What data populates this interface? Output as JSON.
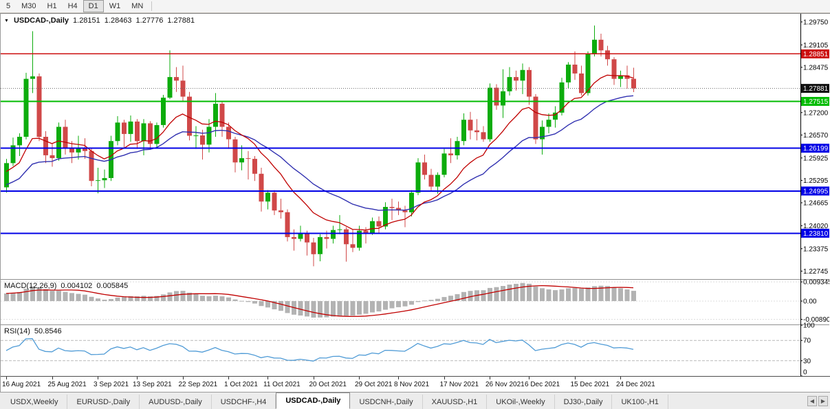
{
  "colors": {
    "candle_up": "#0cac0c",
    "candle_down": "#d04848",
    "ma_fast": "#c00000",
    "ma_slow": "#3030b0",
    "macd_hist": "#b3b3b3",
    "macd_signal": "#c00000",
    "rsi_line": "#4f9bd6",
    "axis_text": "#000000"
  },
  "toolbar": {
    "timeframes": [
      "5",
      "M30",
      "H1",
      "H4",
      "D1",
      "W1",
      "MN"
    ],
    "active": "D1"
  },
  "chart_header": {
    "dropdown_icon": "▼",
    "symbol_label": "USDCAD-,Daily",
    "open": "1.28151",
    "high": "1.28463",
    "low": "1.27776",
    "close": "1.27881"
  },
  "indicators": {
    "macd": {
      "label": "MACD(12,26,9)",
      "value_main": "0.004102",
      "value_signal": "0.005845"
    },
    "rsi": {
      "label": "RSI(14)",
      "value": "50.8546"
    }
  },
  "chart_data": {
    "type": "candlestick",
    "title": "USDCAD-,Daily",
    "ylim": [
      1.2252,
      1.2998
    ],
    "y_ticks": [
      "1.29750",
      "1.29105",
      "1.28475",
      "1.27200",
      "1.26570",
      "1.25925",
      "1.25295",
      "1.24665",
      "1.24020",
      "1.23375",
      "1.22745"
    ],
    "hlines": [
      {
        "price": 1.28851,
        "label": "1.28851",
        "color": "#cc0f0f",
        "width": 1.6
      },
      {
        "price": 1.27515,
        "label": "1.27515",
        "color": "#00bb00",
        "width": 1.6
      },
      {
        "price": 1.26199,
        "label": "1.26199",
        "color": "#0000e6",
        "width": 2
      },
      {
        "price": 1.24995,
        "label": "1.24995",
        "color": "#0000e6",
        "width": 2
      },
      {
        "price": 1.2381,
        "label": "1.23810",
        "color": "#0000e6",
        "width": 2
      }
    ],
    "current_price": {
      "label": "1.27881",
      "value": 1.27881,
      "badge_color": "#101010"
    },
    "overlays": {
      "ma_fast": {
        "type": "ema",
        "period": 12,
        "seed": 1.255
      },
      "ma_slow": {
        "type": "ema",
        "period": 26,
        "seed": 1.2512
      }
    },
    "sub_panes": {
      "macd": {
        "ylim": [
          -0.0114,
          0.0104
        ],
        "ticks": [
          {
            "label": "0.009345",
            "v": 0.009345
          },
          {
            "label": "0.00",
            "v": 0
          },
          {
            "label": "-0.008905",
            "v": -0.008905
          }
        ]
      },
      "rsi": {
        "ylim": [
          0,
          100
        ],
        "levels": [
          70,
          30
        ],
        "ticks": [
          {
            "label": "100",
            "v": 100
          },
          {
            "label": "70",
            "v": 70
          },
          {
            "label": "30",
            "v": 30
          },
          {
            "label": "0",
            "v": 0
          }
        ]
      }
    },
    "x_tick_labels": [
      {
        "label": "16 Aug 2021",
        "i": 0
      },
      {
        "label": "25 Aug 2021",
        "i": 7
      },
      {
        "label": "3 Sep 2021",
        "i": 14
      },
      {
        "label": "13 Sep 2021",
        "i": 20
      },
      {
        "label": "22 Sep 2021",
        "i": 27
      },
      {
        "label": "1 Oct 2021",
        "i": 34
      },
      {
        "label": "11 Oct 2021",
        "i": 40
      },
      {
        "label": "20 Oct 2021",
        "i": 47
      },
      {
        "label": "29 Oct 2021",
        "i": 54
      },
      {
        "label": "8 Nov 2021",
        "i": 60
      },
      {
        "label": "17 Nov 2021",
        "i": 67
      },
      {
        "label": "26 Nov 2021",
        "i": 74
      },
      {
        "label": "6 Dec 2021",
        "i": 80
      },
      {
        "label": "15 Dec 2021",
        "i": 87
      },
      {
        "label": "24 Dec 2021",
        "i": 94
      }
    ],
    "ohlc": [
      [
        1.251,
        1.259,
        1.2495,
        1.2578
      ],
      [
        1.2578,
        1.265,
        1.257,
        1.2628
      ],
      [
        1.2628,
        1.2662,
        1.2598,
        1.2652
      ],
      [
        1.2652,
        1.2832,
        1.2645,
        1.2815
      ],
      [
        1.2815,
        1.2949,
        1.2775,
        1.2822
      ],
      [
        1.2822,
        1.283,
        1.264,
        1.2652
      ],
      [
        1.2652,
        1.2668,
        1.2578,
        1.26
      ],
      [
        1.26,
        1.2632,
        1.2568,
        1.2592
      ],
      [
        1.2592,
        1.2692,
        1.2585,
        1.268
      ],
      [
        1.268,
        1.27,
        1.2602,
        1.262
      ],
      [
        1.262,
        1.264,
        1.2578,
        1.2608
      ],
      [
        1.2608,
        1.2655,
        1.2588,
        1.262
      ],
      [
        1.262,
        1.2648,
        1.259,
        1.2612
      ],
      [
        1.2612,
        1.2622,
        1.2513,
        1.2528
      ],
      [
        1.2528,
        1.2565,
        1.2493,
        1.253
      ],
      [
        1.253,
        1.256,
        1.2508,
        1.2536
      ],
      [
        1.2536,
        1.2655,
        1.2528,
        1.264
      ],
      [
        1.264,
        1.271,
        1.2628,
        1.2692
      ],
      [
        1.2692,
        1.27,
        1.2618,
        1.266
      ],
      [
        1.266,
        1.2712,
        1.2638,
        1.2695
      ],
      [
        1.2695,
        1.2702,
        1.2618,
        1.264
      ],
      [
        1.264,
        1.2702,
        1.26,
        1.269
      ],
      [
        1.269,
        1.2696,
        1.2618,
        1.2632
      ],
      [
        1.2632,
        1.2692,
        1.2622,
        1.2685
      ],
      [
        1.2685,
        1.277,
        1.2678,
        1.2762
      ],
      [
        1.2762,
        1.2895,
        1.2758,
        1.282
      ],
      [
        1.282,
        1.2848,
        1.2778,
        1.281
      ],
      [
        1.281,
        1.2852,
        1.2752,
        1.2765
      ],
      [
        1.2765,
        1.2778,
        1.2642,
        1.2655
      ],
      [
        1.2655,
        1.2682,
        1.2618,
        1.2656
      ],
      [
        1.2656,
        1.2672,
        1.2588,
        1.263
      ],
      [
        1.263,
        1.2702,
        1.2608,
        1.268
      ],
      [
        1.268,
        1.2775,
        1.2652,
        1.2745
      ],
      [
        1.2745,
        1.2752,
        1.2652,
        1.268
      ],
      [
        1.268,
        1.2692,
        1.2618,
        1.2645
      ],
      [
        1.2645,
        1.2652,
        1.2552,
        1.258
      ],
      [
        1.258,
        1.2628,
        1.2558,
        1.2592
      ],
      [
        1.2592,
        1.2612,
        1.2532,
        1.259
      ],
      [
        1.259,
        1.2598,
        1.2528,
        1.2548
      ],
      [
        1.2548,
        1.2565,
        1.2442,
        1.247
      ],
      [
        1.247,
        1.2502,
        1.2448,
        1.2495
      ],
      [
        1.2495,
        1.2502,
        1.2432,
        1.2445
      ],
      [
        1.2445,
        1.2478,
        1.2422,
        1.244
      ],
      [
        1.244,
        1.2448,
        1.2358,
        1.237
      ],
      [
        1.237,
        1.2392,
        1.2332,
        1.2365
      ],
      [
        1.2365,
        1.2402,
        1.2358,
        1.2382
      ],
      [
        1.2382,
        1.2388,
        1.2318,
        1.2355
      ],
      [
        1.2355,
        1.2368,
        1.2288,
        1.2322
      ],
      [
        1.2322,
        1.2378,
        1.2302,
        1.237
      ],
      [
        1.237,
        1.2388,
        1.2338,
        1.2365
      ],
      [
        1.2365,
        1.2402,
        1.2352,
        1.239
      ],
      [
        1.239,
        1.2432,
        1.2378,
        1.2392
      ],
      [
        1.2392,
        1.2398,
        1.2301,
        1.235
      ],
      [
        1.235,
        1.2392,
        1.2328,
        1.234
      ],
      [
        1.234,
        1.2402,
        1.2332,
        1.2388
      ],
      [
        1.2388,
        1.2398,
        1.2352,
        1.2382
      ],
      [
        1.2382,
        1.2425,
        1.2376,
        1.2415
      ],
      [
        1.2415,
        1.2428,
        1.2382,
        1.24
      ],
      [
        1.24,
        1.2468,
        1.2392,
        1.2455
      ],
      [
        1.2455,
        1.2478,
        1.2418,
        1.2452
      ],
      [
        1.2452,
        1.247,
        1.2432,
        1.2445
      ],
      [
        1.2445,
        1.2458,
        1.2398,
        1.244
      ],
      [
        1.244,
        1.2502,
        1.2428,
        1.2495
      ],
      [
        1.2495,
        1.2592,
        1.2488,
        1.258
      ],
      [
        1.258,
        1.2602,
        1.2532,
        1.2545
      ],
      [
        1.2545,
        1.2562,
        1.2498,
        1.2512
      ],
      [
        1.2512,
        1.2552,
        1.2492,
        1.2545
      ],
      [
        1.2545,
        1.2618,
        1.2538,
        1.2605
      ],
      [
        1.2605,
        1.2648,
        1.2578,
        1.26
      ],
      [
        1.26,
        1.2652,
        1.2588,
        1.264
      ],
      [
        1.264,
        1.2718,
        1.2628,
        1.27
      ],
      [
        1.27,
        1.2722,
        1.2645,
        1.267
      ],
      [
        1.267,
        1.2702,
        1.2642,
        1.2665
      ],
      [
        1.2665,
        1.2682,
        1.2638,
        1.2645
      ],
      [
        1.2645,
        1.2802,
        1.2638,
        1.279
      ],
      [
        1.279,
        1.28,
        1.2728,
        1.274
      ],
      [
        1.274,
        1.2842,
        1.2705,
        1.278
      ],
      [
        1.278,
        1.2848,
        1.2768,
        1.282
      ],
      [
        1.282,
        1.2838,
        1.2782,
        1.281
      ],
      [
        1.281,
        1.2858,
        1.2772,
        1.284
      ],
      [
        1.284,
        1.2848,
        1.2742,
        1.2765
      ],
      [
        1.2765,
        1.2772,
        1.2632,
        1.2645
      ],
      [
        1.2645,
        1.2698,
        1.2602,
        1.268
      ],
      [
        1.268,
        1.2718,
        1.2662,
        1.27
      ],
      [
        1.27,
        1.2738,
        1.2678,
        1.272
      ],
      [
        1.272,
        1.2818,
        1.2712,
        1.2805
      ],
      [
        1.2805,
        1.2862,
        1.2788,
        1.2855
      ],
      [
        1.2855,
        1.2892,
        1.2812,
        1.283
      ],
      [
        1.283,
        1.2852,
        1.2768,
        1.2775
      ],
      [
        1.2775,
        1.2892,
        1.2768,
        1.2885
      ],
      [
        1.2885,
        1.2965,
        1.2878,
        1.2925
      ],
      [
        1.2925,
        1.2942,
        1.2878,
        1.2895
      ],
      [
        1.2895,
        1.2908,
        1.2852,
        1.287
      ],
      [
        1.287,
        1.2876,
        1.2798,
        1.2815
      ],
      [
        1.2815,
        1.2838,
        1.2792,
        1.2825
      ],
      [
        1.2825,
        1.2852,
        1.2788,
        1.2815
      ],
      [
        1.28151,
        1.28463,
        1.27776,
        1.27881
      ]
    ]
  },
  "tabs": {
    "items": [
      "USDX,Weekly",
      "EURUSD-,Daily",
      "AUDUSD-,Daily",
      "USDCHF-,H4",
      "USDCAD-,Daily",
      "USDCNH-,Daily",
      "XAUUSD-,H1",
      "UKOil-,Weekly",
      "DJ30-,Daily",
      "UK100-,H1"
    ],
    "active": "USDCAD-,Daily",
    "scroll_left_icon": "◀",
    "scroll_right_icon": "▶"
  }
}
